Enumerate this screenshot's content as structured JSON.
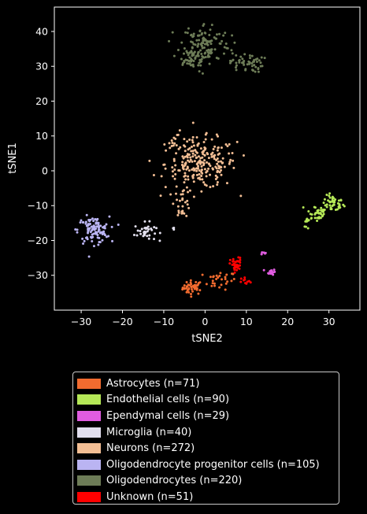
{
  "chart_data": {
    "type": "scatter",
    "title": "",
    "xlabel": "tSNE2",
    "ylabel": "tSNE1",
    "xlim": [
      -36.5,
      37.5
    ],
    "ylim": [
      -40,
      47
    ],
    "xticks": [
      -30,
      -20,
      -10,
      0,
      10,
      20,
      30
    ],
    "yticks": [
      -30,
      -20,
      -10,
      0,
      10,
      20,
      30,
      40
    ],
    "grid": false,
    "legend_placement": "below",
    "series": [
      {
        "name": "Astrocytes (n=71)",
        "color": "#f26b2f",
        "n": 71,
        "clusters": [
          {
            "cx": -3,
            "cy": -33.5,
            "sx": 1.2,
            "sy": 1.0,
            "w": 0.6
          },
          {
            "cx": 3.5,
            "cy": -31.5,
            "sx": 2.0,
            "sy": 1.3,
            "w": 0.4
          }
        ]
      },
      {
        "name": "Endothelial cells (n=90)",
        "color": "#b5e857",
        "n": 90,
        "clusters": [
          {
            "cx": 31,
            "cy": -9.5,
            "sx": 1.3,
            "sy": 1.2,
            "w": 0.5
          },
          {
            "cx": 27,
            "cy": -12,
            "sx": 1.4,
            "sy": 1.4,
            "w": 0.4
          },
          {
            "cx": 25,
            "cy": -15,
            "sx": 0.4,
            "sy": 1.2,
            "w": 0.1
          }
        ]
      },
      {
        "name": "Ependymal cells (n=29)",
        "color": "#e05ce0",
        "n": 29,
        "clusters": [
          {
            "cx": 16,
            "cy": -29,
            "sx": 0.5,
            "sy": 0.4,
            "w": 0.8
          },
          {
            "cx": 14,
            "cy": -23.5,
            "sx": 0.3,
            "sy": 0.2,
            "w": 0.2
          }
        ]
      },
      {
        "name": "Microglia (n=40)",
        "color": "#e2dfee",
        "n": 40,
        "clusters": [
          {
            "cx": -14.5,
            "cy": -17.5,
            "sx": 1.3,
            "sy": 1.3,
            "w": 0.92
          },
          {
            "cx": -7.5,
            "cy": -17,
            "sx": 0.3,
            "sy": 0.7,
            "w": 0.08
          }
        ]
      },
      {
        "name": "Neurons (n=272)",
        "color": "#f3be94",
        "n": 272,
        "clusters": [
          {
            "cx": -1,
            "cy": 2,
            "sx": 4.3,
            "sy": 3.6,
            "w": 0.85
          },
          {
            "cx": -5.5,
            "cy": -9,
            "sx": 1.0,
            "sy": 2.2,
            "w": 0.1
          },
          {
            "cx": -7,
            "cy": 8.5,
            "sx": 1.5,
            "sy": 1.3,
            "w": 0.05
          }
        ]
      },
      {
        "name": "Oligodendrocyte progenitor cells (n=105)",
        "color": "#bab4f2",
        "n": 105,
        "clusters": [
          {
            "cx": -27,
            "cy": -17,
            "sx": 1.9,
            "sy": 1.9,
            "w": 1.0
          }
        ]
      },
      {
        "name": "Oligodendrocytes (n=220)",
        "color": "#6d7c57",
        "n": 220,
        "clusters": [
          {
            "cx": 0,
            "cy": 36.5,
            "sx": 3.0,
            "sy": 3.0,
            "w": 0.55
          },
          {
            "cx": -3.5,
            "cy": 32,
            "sx": 1.8,
            "sy": 1.8,
            "w": 0.2
          },
          {
            "cx": 10,
            "cy": 31,
            "sx": 2.0,
            "sy": 1.4,
            "w": 0.25
          }
        ]
      },
      {
        "name": "Unknown (n=51)",
        "color": "#ff0000",
        "n": 51,
        "clusters": [
          {
            "cx": 7.5,
            "cy": -27,
            "sx": 0.7,
            "sy": 1.0,
            "w": 0.8
          },
          {
            "cx": 10,
            "cy": -32,
            "sx": 0.6,
            "sy": 0.7,
            "w": 0.2
          }
        ]
      }
    ]
  }
}
